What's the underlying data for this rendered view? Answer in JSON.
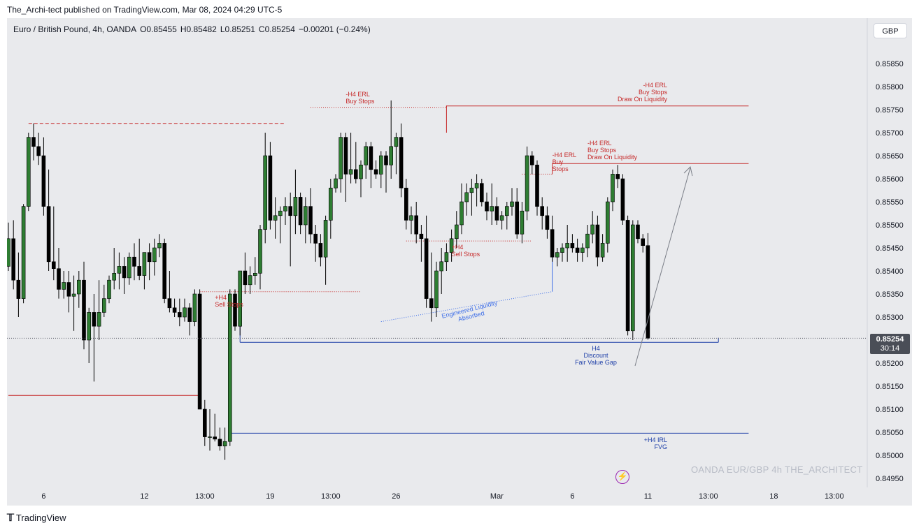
{
  "header": {
    "published_by": "The_Archi-tect published on TradingView.com, Mar 08, 2024 04:29 UTC-5"
  },
  "legend": {
    "symbol": "Euro / British Pound, 4h, OANDA",
    "open": "O0.85455",
    "high": "H0.85482",
    "low": "L0.85251",
    "close": "C0.85254",
    "change": "−0.00201 (−0.24%)"
  },
  "currency_button": "GBP",
  "watermark": "OANDA  EUR/GBP 4h  THE_ARCHITECT",
  "footer": {
    "logo_icon": "tradingview-logo-icon",
    "brand": "TradingView"
  },
  "last_price": {
    "price": "0.85254",
    "countdown": "30:14"
  },
  "colors": {
    "up": "#2e7d32",
    "down": "#000000",
    "red_level": "#c62828",
    "blue_level": "#1e3fa8",
    "dotted_blue": "#3d6ee8",
    "arrow": "#7a7e87"
  },
  "chart_data": {
    "type": "candlestick",
    "symbol": "EUR/GBP",
    "timeframe": "4h",
    "y_ticks": [
      "0.85850",
      "0.85800",
      "0.85750",
      "0.85700",
      "0.85650",
      "0.85600",
      "0.85550",
      "0.85500",
      "0.85450",
      "0.85400",
      "0.85350",
      "0.85300",
      "0.85250",
      "0.85200",
      "0.85150",
      "0.85100",
      "0.85050",
      "0.85000",
      "0.84950"
    ],
    "ylim": [
      0.8494,
      0.859
    ],
    "x_ticks": [
      {
        "label": "6",
        "bar": 7
      },
      {
        "label": "12",
        "bar": 27
      },
      {
        "label": "13:00",
        "bar": 39
      },
      {
        "label": "19",
        "bar": 52
      },
      {
        "label": "13:00",
        "bar": 64
      },
      {
        "label": "26",
        "bar": 77
      },
      {
        "label": "Mar",
        "bar": 97
      },
      {
        "label": "6",
        "bar": 112
      },
      {
        "label": "11",
        "bar": 127
      },
      {
        "label": "13:00",
        "bar": 139
      },
      {
        "label": "18",
        "bar": 152
      },
      {
        "label": "13:00",
        "bar": 164
      }
    ],
    "candles": [
      [
        0.8541,
        0.85505,
        0.854,
        0.8547
      ],
      [
        0.8547,
        0.8551,
        0.8536,
        0.8538
      ],
      [
        0.8538,
        0.8544,
        0.853,
        0.8534
      ],
      [
        0.8534,
        0.85545,
        0.8533,
        0.8554
      ],
      [
        0.8554,
        0.857,
        0.8553,
        0.8569
      ],
      [
        0.8569,
        0.8572,
        0.8564,
        0.8567
      ],
      [
        0.8567,
        0.857,
        0.8563,
        0.8565
      ],
      [
        0.8565,
        0.8569,
        0.8552,
        0.8554
      ],
      [
        0.8554,
        0.8562,
        0.854,
        0.8542
      ],
      [
        0.8542,
        0.8554,
        0.8538,
        0.85405
      ],
      [
        0.85405,
        0.8545,
        0.8534,
        0.8536
      ],
      [
        0.8536,
        0.854,
        0.8534,
        0.85375
      ],
      [
        0.85375,
        0.854,
        0.8531,
        0.85345
      ],
      [
        0.85345,
        0.8539,
        0.8527,
        0.8535
      ],
      [
        0.8535,
        0.854,
        0.8532,
        0.8538
      ],
      [
        0.8538,
        0.8542,
        0.8523,
        0.8525
      ],
      [
        0.8525,
        0.8532,
        0.852,
        0.8531
      ],
      [
        0.8531,
        0.8535,
        0.8516,
        0.8528
      ],
      [
        0.8528,
        0.8538,
        0.8525,
        0.8531
      ],
      [
        0.8531,
        0.8537,
        0.853,
        0.8534
      ],
      [
        0.8534,
        0.8539,
        0.8533,
        0.8538
      ],
      [
        0.8538,
        0.8545,
        0.8536,
        0.85395
      ],
      [
        0.85395,
        0.8544,
        0.8536,
        0.8541
      ],
      [
        0.8541,
        0.8543,
        0.8535,
        0.85385
      ],
      [
        0.85385,
        0.8544,
        0.8537,
        0.8543
      ],
      [
        0.8543,
        0.8546,
        0.8538,
        0.8541
      ],
      [
        0.8541,
        0.8547,
        0.8538,
        0.8539
      ],
      [
        0.8539,
        0.8544,
        0.8536,
        0.8544
      ],
      [
        0.8544,
        0.8546,
        0.8538,
        0.8542
      ],
      [
        0.8542,
        0.8547,
        0.8539,
        0.8545
      ],
      [
        0.8545,
        0.8548,
        0.8543,
        0.8546
      ],
      [
        0.8546,
        0.8547,
        0.8533,
        0.8534
      ],
      [
        0.8534,
        0.854,
        0.8531,
        0.8532
      ],
      [
        0.8532,
        0.8534,
        0.853,
        0.8531
      ],
      [
        0.8531,
        0.8534,
        0.8528,
        0.853
      ],
      [
        0.853,
        0.8534,
        0.8529,
        0.8532
      ],
      [
        0.8532,
        0.8533,
        0.8526,
        0.8529
      ],
      [
        0.8529,
        0.8536,
        0.8528,
        0.8535
      ],
      [
        0.8535,
        0.8536,
        0.851,
        0.851
      ],
      [
        0.851,
        0.8512,
        0.8502,
        0.8504
      ],
      [
        0.8504,
        0.851,
        0.8501,
        0.8504
      ],
      [
        0.8504,
        0.8509,
        0.8503,
        0.85035
      ],
      [
        0.85035,
        0.8506,
        0.8501,
        0.8502
      ],
      [
        0.8502,
        0.8506,
        0.8499,
        0.8503
      ],
      [
        0.8503,
        0.8536,
        0.8502,
        0.8535
      ],
      [
        0.8535,
        0.8536,
        0.8527,
        0.8528
      ],
      [
        0.8528,
        0.854,
        0.8526,
        0.854
      ],
      [
        0.854,
        0.8544,
        0.8535,
        0.8537
      ],
      [
        0.8537,
        0.8541,
        0.8535,
        0.8539
      ],
      [
        0.8539,
        0.8543,
        0.8537,
        0.85395
      ],
      [
        0.85395,
        0.855,
        0.8536,
        0.8549
      ],
      [
        0.8549,
        0.857,
        0.8546,
        0.8565
      ],
      [
        0.8565,
        0.8568,
        0.8549,
        0.8551
      ],
      [
        0.8551,
        0.8556,
        0.8547,
        0.8552
      ],
      [
        0.8552,
        0.8554,
        0.8546,
        0.8553
      ],
      [
        0.8553,
        0.8556,
        0.855,
        0.8554
      ],
      [
        0.8554,
        0.8557,
        0.8541,
        0.8552
      ],
      [
        0.8552,
        0.8562,
        0.8548,
        0.8556
      ],
      [
        0.8556,
        0.8557,
        0.8548,
        0.855
      ],
      [
        0.855,
        0.8556,
        0.8546,
        0.8554
      ],
      [
        0.8554,
        0.8558,
        0.8546,
        0.8548
      ],
      [
        0.8548,
        0.855,
        0.8542,
        0.8546
      ],
      [
        0.8546,
        0.8548,
        0.8541,
        0.8543
      ],
      [
        0.8543,
        0.8552,
        0.8537,
        0.8551
      ],
      [
        0.8551,
        0.856,
        0.8547,
        0.8558
      ],
      [
        0.8558,
        0.8561,
        0.8557,
        0.856
      ],
      [
        0.856,
        0.857,
        0.8557,
        0.8569
      ],
      [
        0.8569,
        0.857,
        0.8555,
        0.8561
      ],
      [
        0.8561,
        0.857,
        0.8559,
        0.8562
      ],
      [
        0.8562,
        0.8568,
        0.8559,
        0.856
      ],
      [
        0.856,
        0.8564,
        0.8556,
        0.8563
      ],
      [
        0.8563,
        0.8568,
        0.856,
        0.8567
      ],
      [
        0.8567,
        0.8568,
        0.8558,
        0.8562
      ],
      [
        0.8562,
        0.8564,
        0.856,
        0.8561
      ],
      [
        0.8561,
        0.8566,
        0.8558,
        0.8565
      ],
      [
        0.8565,
        0.8566,
        0.8557,
        0.8563
      ],
      [
        0.8563,
        0.8577,
        0.856,
        0.8567
      ],
      [
        0.8567,
        0.857,
        0.8561,
        0.8569
      ],
      [
        0.8569,
        0.8572,
        0.8556,
        0.8558
      ],
      [
        0.8558,
        0.856,
        0.8549,
        0.8551
      ],
      [
        0.8551,
        0.8554,
        0.8548,
        0.8552
      ],
      [
        0.8552,
        0.8555,
        0.8546,
        0.8548
      ],
      [
        0.8548,
        0.855,
        0.8542,
        0.8547
      ],
      [
        0.8547,
        0.8552,
        0.8532,
        0.8534
      ],
      [
        0.8534,
        0.8544,
        0.8529,
        0.8532
      ],
      [
        0.8532,
        0.8542,
        0.853,
        0.854
      ],
      [
        0.854,
        0.8545,
        0.8535,
        0.8542
      ],
      [
        0.8542,
        0.8546,
        0.854,
        0.8544
      ],
      [
        0.8544,
        0.8549,
        0.8542,
        0.8547
      ],
      [
        0.8547,
        0.8553,
        0.8545,
        0.855
      ],
      [
        0.855,
        0.8559,
        0.8548,
        0.8555
      ],
      [
        0.8555,
        0.8559,
        0.8552,
        0.8557
      ],
      [
        0.8557,
        0.856,
        0.8552,
        0.8558
      ],
      [
        0.8558,
        0.8561,
        0.8554,
        0.8559
      ],
      [
        0.8559,
        0.856,
        0.8554,
        0.8555
      ],
      [
        0.8555,
        0.8557,
        0.8551,
        0.8553
      ],
      [
        0.8553,
        0.8559,
        0.855,
        0.8554
      ],
      [
        0.8554,
        0.8556,
        0.855,
        0.8551
      ],
      [
        0.8551,
        0.8553,
        0.8549,
        0.8552
      ],
      [
        0.8552,
        0.8555,
        0.8549,
        0.8554
      ],
      [
        0.8554,
        0.8558,
        0.8552,
        0.8555
      ],
      [
        0.8555,
        0.8558,
        0.8547,
        0.8548
      ],
      [
        0.8548,
        0.8555,
        0.8546,
        0.8553
      ],
      [
        0.8553,
        0.8567,
        0.8551,
        0.8565
      ],
      [
        0.8565,
        0.8566,
        0.8561,
        0.8563
      ],
      [
        0.8563,
        0.8564,
        0.8552,
        0.8554
      ],
      [
        0.8554,
        0.8556,
        0.8549,
        0.8552
      ],
      [
        0.8552,
        0.8554,
        0.8547,
        0.8549
      ],
      [
        0.8549,
        0.8552,
        0.8542,
        0.8543
      ],
      [
        0.8543,
        0.8545,
        0.8541,
        0.8544
      ],
      [
        0.8544,
        0.8546,
        0.8542,
        0.8545
      ],
      [
        0.8545,
        0.855,
        0.8542,
        0.8546
      ],
      [
        0.8546,
        0.8548,
        0.8544,
        0.8545
      ],
      [
        0.8545,
        0.8547,
        0.8542,
        0.8544
      ],
      [
        0.8544,
        0.8546,
        0.8542,
        0.8545
      ],
      [
        0.8545,
        0.855,
        0.8543,
        0.8548
      ],
      [
        0.8548,
        0.8553,
        0.8546,
        0.855
      ],
      [
        0.855,
        0.8552,
        0.8541,
        0.8543
      ],
      [
        0.8543,
        0.8548,
        0.8542,
        0.8546
      ],
      [
        0.8546,
        0.8556,
        0.8544,
        0.8555
      ],
      [
        0.8555,
        0.8562,
        0.8553,
        0.8561
      ],
      [
        0.8561,
        0.8563,
        0.8558,
        0.856
      ],
      [
        0.856,
        0.8561,
        0.855,
        0.8551
      ],
      [
        0.8551,
        0.8552,
        0.8526,
        0.8527
      ],
      [
        0.8527,
        0.8551,
        0.8525,
        0.855
      ],
      [
        0.855,
        0.8551,
        0.8546,
        0.8547
      ],
      [
        0.8547,
        0.8548,
        0.8544,
        0.85455
      ],
      [
        0.85455,
        0.85482,
        0.85251,
        0.85254
      ]
    ],
    "levels": [
      {
        "name": "red-dashed-high",
        "price": 0.8572,
        "from_bar": 4,
        "to_bar": 55,
        "style": "dashed",
        "color": "red"
      },
      {
        "name": "buy-stops-upper",
        "price": 0.85755,
        "from_bar": 60,
        "to_bar": 87,
        "style": "dotted",
        "color": "red"
      },
      {
        "name": "erl-draw-upper",
        "price": 0.85758,
        "from_bar": 87,
        "to_bar": 147,
        "style": "solid",
        "color": "red"
      },
      {
        "name": "buy-stops-mid",
        "price": 0.8561,
        "from_bar": 102,
        "to_bar": 108,
        "style": "dotted",
        "color": "red"
      },
      {
        "name": "erl-draw-lower",
        "price": 0.85633,
        "from_bar": 108,
        "to_bar": 147,
        "style": "solid",
        "color": "red"
      },
      {
        "name": "sell-stops-upper",
        "price": 0.85465,
        "from_bar": 79,
        "to_bar": 104,
        "style": "dotted",
        "color": "red"
      },
      {
        "name": "sell-stops-lower",
        "price": 0.85355,
        "from_bar": 38,
        "to_bar": 70,
        "style": "dotted",
        "color": "red"
      },
      {
        "name": "red-left-level",
        "price": 0.8513,
        "from_bar": 0,
        "to_bar": 38,
        "style": "solid",
        "color": "red"
      },
      {
        "name": "discount-fvg",
        "price": 0.85245,
        "from_bar": 46,
        "to_bar": 141,
        "style": "solid",
        "color": "blue"
      },
      {
        "name": "irl-fvg",
        "price": 0.85048,
        "from_bar": 44,
        "to_bar": 147,
        "style": "solid",
        "color": "blue"
      }
    ],
    "annotations": [
      {
        "lines": [
          "-H4 ERL",
          "Buy Stops"
        ],
        "color": "red"
      },
      {
        "lines": [
          "-H4 ERL",
          "Buy Stops",
          "Draw On Liquidity"
        ],
        "color": "red"
      },
      {
        "lines": [
          "-H4 ERL",
          "Buy",
          "Stops"
        ],
        "color": "red"
      },
      {
        "lines": [
          "-H4 ERL",
          "Buy Stops",
          "Draw On Liquidity"
        ],
        "color": "red"
      },
      {
        "lines": [
          "+H4",
          "Sell Stops"
        ],
        "color": "red"
      },
      {
        "lines": [
          "+H4",
          "Sell Stops"
        ],
        "color": "red"
      },
      {
        "lines": [
          "Engineered Liquidity",
          "Absorbed"
        ],
        "color": "blue"
      },
      {
        "lines": [
          "H4",
          "Discount",
          "Fair Value Gap"
        ],
        "color": "blue"
      },
      {
        "lines": [
          "+H4 IRL",
          "FVG"
        ],
        "color": "blue"
      }
    ],
    "grid": false,
    "projection_arrow": true
  }
}
